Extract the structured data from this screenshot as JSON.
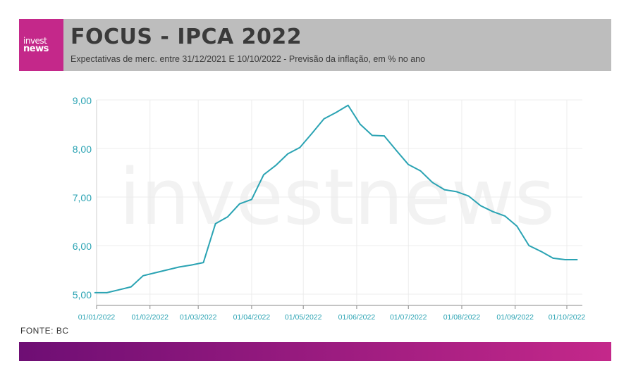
{
  "header": {
    "logo_line1": "invest",
    "logo_line2": "news",
    "title": "FOCUS - IPCA 2022",
    "subtitle": "Expectativas de merc. entre 31/12/2021 E 10/10/2022 - Previsão da inflação, em % no ano"
  },
  "watermark": "investnews",
  "footer": {
    "source": "FONTE: BC"
  },
  "colors": {
    "line": "#2aa3b3",
    "logo": "#c4288a",
    "header_bg": "#bdbdbd",
    "bar_start": "#6e0e74",
    "bar_end": "#c4288a"
  },
  "chart_data": {
    "type": "line",
    "title": "FOCUS - IPCA 2022",
    "subtitle": "Expectativas de merc. entre 31/12/2021 E 10/10/2022 - Previsão da inflação, em % no ano",
    "xlabel": "",
    "ylabel": "",
    "ylim": [
      5.0,
      9.0
    ],
    "yticks": [
      "5,00",
      "6,00",
      "7,00",
      "8,00",
      "9,00"
    ],
    "xticks": [
      "01/01/2022",
      "01/02/2022",
      "01/03/2022",
      "01/04/2022",
      "01/05/2022",
      "01/06/2022",
      "01/07/2022",
      "01/08/2022",
      "01/09/2022",
      "01/10/2022"
    ],
    "grid": true,
    "series": [
      {
        "name": "",
        "x": [
          "2021-12-31",
          "2022-01-07",
          "2022-01-14",
          "2022-01-21",
          "2022-01-28",
          "2022-02-04",
          "2022-02-11",
          "2022-02-18",
          "2022-02-25",
          "2022-03-04",
          "2022-03-11",
          "2022-03-18",
          "2022-03-25",
          "2022-04-01",
          "2022-04-08",
          "2022-04-15",
          "2022-04-22",
          "2022-04-29",
          "2022-05-06",
          "2022-05-13",
          "2022-05-20",
          "2022-05-27",
          "2022-06-03",
          "2022-06-10",
          "2022-06-17",
          "2022-06-24",
          "2022-07-01",
          "2022-07-08",
          "2022-07-15",
          "2022-07-22",
          "2022-07-29",
          "2022-08-05",
          "2022-08-12",
          "2022-08-19",
          "2022-08-26",
          "2022-09-02",
          "2022-09-09",
          "2022-09-16",
          "2022-09-23",
          "2022-09-30",
          "2022-10-07"
        ],
        "values": [
          5.03,
          5.03,
          5.09,
          5.15,
          5.38,
          5.44,
          5.5,
          5.56,
          5.6,
          5.65,
          6.45,
          6.59,
          6.86,
          6.95,
          7.46,
          7.65,
          7.89,
          8.02,
          8.31,
          8.61,
          8.74,
          8.89,
          8.5,
          8.27,
          8.26,
          7.96,
          7.67,
          7.54,
          7.3,
          7.15,
          7.11,
          7.02,
          6.82,
          6.7,
          6.61,
          6.4,
          6.0,
          5.88,
          5.74,
          5.71,
          5.71
        ]
      }
    ]
  }
}
